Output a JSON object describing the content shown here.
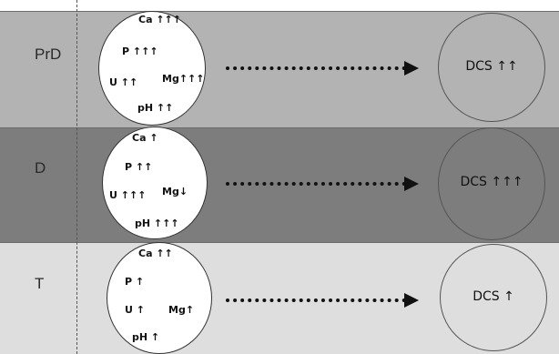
{
  "rows": [
    {
      "label": "PrD",
      "band_color": "#b3b3b3",
      "ions": {
        "ca": "Ca ↑↑↑",
        "p": "P ↑↑↑",
        "u": "U ↑↑",
        "mg": "Mg↑↑↑",
        "ph": "pH ↑↑"
      },
      "dcs": "DCS ↑↑"
    },
    {
      "label": "D",
      "band_color": "#7d7d7d",
      "ions": {
        "ca": "Ca ↑",
        "p": "P ↑↑",
        "u": "U ↑↑↑",
        "mg": "Mg↓",
        "ph": "pH ↑↑↑"
      },
      "dcs": "DCS ↑↑↑"
    },
    {
      "label": "T",
      "band_color": "#dedede",
      "ions": {
        "ca": "Ca ↑↑",
        "p": "P ↑",
        "u": "U ↑",
        "mg": "Mg↑",
        "ph": "pH ↑"
      },
      "dcs": "DCS ↑"
    }
  ]
}
